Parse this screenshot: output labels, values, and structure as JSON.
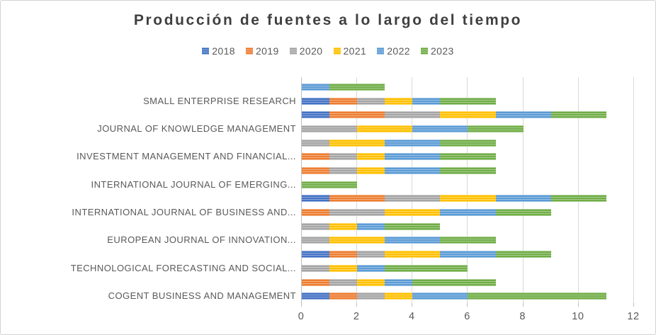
{
  "chart_data": {
    "type": "bar",
    "orientation": "horizontal",
    "stacked": true,
    "title": "Producción de fuentes a lo largo del tiempo",
    "legend_position": "top",
    "grid": true,
    "xlim": [
      0,
      12
    ],
    "x_ticks": [
      0,
      2,
      4,
      6,
      8,
      10,
      12
    ],
    "series_names": [
      "2018",
      "2019",
      "2020",
      "2021",
      "2022",
      "2023"
    ],
    "series_colors": [
      "#4472C4",
      "#ED7D31",
      "#A5A5A5",
      "#FFC000",
      "#5B9BD5",
      "#70AD47"
    ],
    "bars": [
      {
        "label": "",
        "values": [
          0,
          0,
          0,
          0,
          1,
          2
        ]
      },
      {
        "label": "SMALL ENTERPRISE RESEARCH",
        "values": [
          1,
          1,
          1,
          1,
          1,
          2
        ]
      },
      {
        "label": "",
        "values": [
          1,
          2,
          2,
          2,
          2,
          2
        ]
      },
      {
        "label": "JOURNAL OF KNOWLEDGE MANAGEMENT",
        "values": [
          0,
          0,
          2,
          2,
          2,
          2
        ]
      },
      {
        "label": "",
        "values": [
          0,
          0,
          1,
          2,
          2,
          2
        ]
      },
      {
        "label": "INVESTMENT MANAGEMENT AND FINANCIAL...",
        "values": [
          0,
          1,
          1,
          1,
          2,
          2
        ]
      },
      {
        "label": "",
        "values": [
          0,
          1,
          1,
          1,
          2,
          2
        ]
      },
      {
        "label": "INTERNATIONAL JOURNAL OF EMERGING...",
        "values": [
          0,
          0,
          0,
          0,
          0,
          2
        ]
      },
      {
        "label": "",
        "values": [
          1,
          2,
          2,
          2,
          2,
          2
        ]
      },
      {
        "label": "INTERNATIONAL JOURNAL OF BUSINESS AND...",
        "values": [
          0,
          1,
          2,
          2,
          2,
          2
        ]
      },
      {
        "label": "",
        "values": [
          0,
          0,
          1,
          1,
          1,
          2
        ]
      },
      {
        "label": "EUROPEAN JOURNAL OF INNOVATION...",
        "values": [
          0,
          0,
          1,
          2,
          2,
          2
        ]
      },
      {
        "label": "",
        "values": [
          1,
          1,
          1,
          2,
          2,
          2
        ]
      },
      {
        "label": "TECHNOLOGICAL FORECASTING AND SOCIAL...",
        "values": [
          0,
          0,
          1,
          1,
          1,
          3
        ]
      },
      {
        "label": "",
        "values": [
          0,
          1,
          1,
          1,
          1,
          3
        ]
      },
      {
        "label": "COGENT BUSINESS AND MANAGEMENT",
        "values": [
          1,
          1,
          1,
          1,
          2,
          5
        ]
      }
    ]
  }
}
